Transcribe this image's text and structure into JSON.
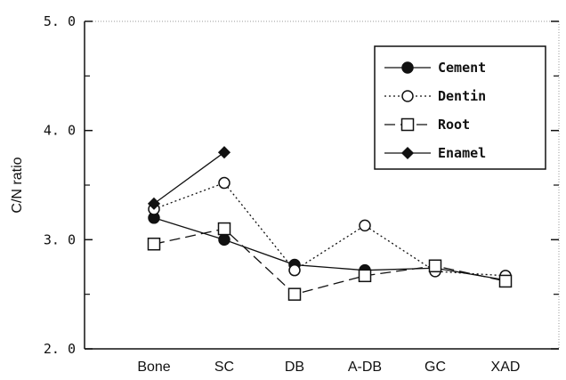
{
  "chart_data": {
    "type": "line",
    "categories": [
      "Bone",
      "SC",
      "DB",
      "A-DB",
      "GC",
      "XAD"
    ],
    "ylabel": "C/N ratio",
    "xlabel": "",
    "ylim": [
      2.0,
      5.0
    ],
    "y_ticks": [
      2.0,
      3.0,
      4.0,
      5.0
    ],
    "y_tick_labels": [
      "2. 0",
      "3. 0",
      "4. 0",
      "5. 0"
    ],
    "y_minor_ticks": [
      2.5,
      3.5,
      4.5
    ],
    "grid": false,
    "legend_position": "top-right",
    "series": [
      {
        "name": "Cement",
        "marker": "filled-circle",
        "line": "solid",
        "values": [
          3.2,
          3.0,
          2.77,
          2.72,
          2.74,
          2.63
        ]
      },
      {
        "name": "Dentin",
        "marker": "open-circle",
        "line": "dotted",
        "values": [
          3.28,
          3.52,
          2.72,
          3.13,
          2.71,
          2.67
        ]
      },
      {
        "name": "Root",
        "marker": "open-square",
        "line": "dashed",
        "values": [
          2.96,
          3.1,
          2.5,
          2.67,
          2.76,
          2.62
        ]
      },
      {
        "name": "Enamel",
        "marker": "filled-diamond",
        "line": "solid",
        "values": [
          3.33,
          3.8,
          null,
          null,
          null,
          null
        ]
      }
    ]
  }
}
